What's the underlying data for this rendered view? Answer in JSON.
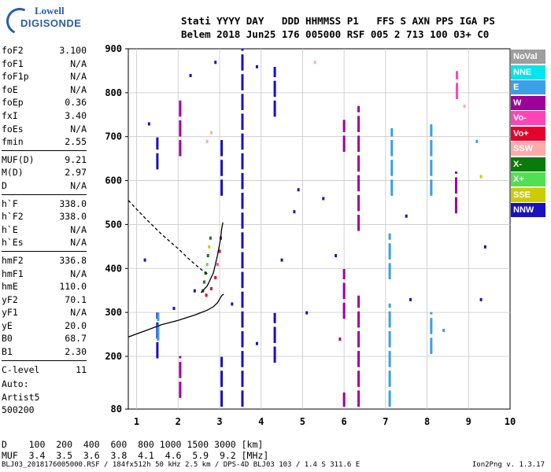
{
  "logo": {
    "line1": "Lowell",
    "line2": "DIGISONDE"
  },
  "header": {
    "line1": "Stati YYYY DAY   DDD HHMMSS P1   FFS S AXN PPS IGA PS",
    "line2": "Belem 2018 Jun25 176 005000 RSF 005 2 713 100 03+ C0"
  },
  "params": {
    "group1": [
      {
        "k": "foF2",
        "v": "3.100"
      },
      {
        "k": "foF1",
        "v": "N/A"
      },
      {
        "k": "foF1p",
        "v": "N/A"
      },
      {
        "k": "foE",
        "v": "N/A"
      },
      {
        "k": "foEp",
        "v": "0.36"
      },
      {
        "k": "fxI",
        "v": "3.40"
      },
      {
        "k": "foEs",
        "v": "N/A"
      },
      {
        "k": "fmin",
        "v": "2.55"
      }
    ],
    "group2": [
      {
        "k": "MUF(D)",
        "v": "9.21"
      },
      {
        "k": "M(D)",
        "v": "2.97"
      },
      {
        "k": "D",
        "v": "N/A"
      }
    ],
    "group3": [
      {
        "k": "h`F",
        "v": "338.0"
      },
      {
        "k": "h`F2",
        "v": "338.0"
      },
      {
        "k": "h`E",
        "v": "N/A"
      },
      {
        "k": "h`Es",
        "v": "N/A"
      }
    ],
    "group4": [
      {
        "k": "hmF2",
        "v": "336.8"
      },
      {
        "k": "hmF1",
        "v": "N/A"
      },
      {
        "k": "hmE",
        "v": "110.0"
      },
      {
        "k": "yF2",
        "v": "70.1"
      },
      {
        "k": "yF1",
        "v": "N/A"
      },
      {
        "k": "yE",
        "v": "20.0"
      },
      {
        "k": "B0",
        "v": "68.7"
      },
      {
        "k": "B1",
        "v": "2.30"
      }
    ],
    "group5": [
      {
        "k": "C-level",
        "v": "11"
      }
    ]
  },
  "auto": {
    "line1": "Auto:",
    "line2": "Artist5",
    "line3": "500200"
  },
  "legend": [
    {
      "label": "NoVal",
      "color": "#9e9e9e"
    },
    {
      "label": "NNE",
      "color": "#00e5ee"
    },
    {
      "label": "E",
      "color": "#3aa0e8"
    },
    {
      "label": "W",
      "color": "#a0009a"
    },
    {
      "label": "Vo-",
      "color": "#ff45b5"
    },
    {
      "label": "Vo+",
      "color": "#e8002a"
    },
    {
      "label": "SSW",
      "color": "#ffaaaa"
    },
    {
      "label": "X-",
      "color": "#0a7a0a"
    },
    {
      "label": "X+",
      "color": "#52e052"
    },
    {
      "label": "SSE",
      "color": "#cccc00"
    },
    {
      "label": "NNW",
      "color": "#1a10c0"
    }
  ],
  "table": {
    "line1": "D    100  200  400  600  800 1000 1500 3000 [km]",
    "line2": "MUF  3.4  3.5  3.6  3.8  4.1  4.6  5.9  9.2 [MHz]"
  },
  "footer": "BLJ03_2018176005000.RSF / 184fx512h 50 kHz 2.5 km / DPS-4D BLJ03 103 / 1.4 S 311.6 E",
  "version": "Ion2Png v. 1.3.17",
  "chart_data": {
    "type": "scatter",
    "xlim": [
      0.8,
      10.0
    ],
    "ylim": [
      80,
      900
    ],
    "xticks": [
      1,
      2,
      3,
      4,
      5,
      6,
      7,
      8,
      9,
      10
    ],
    "yticks": [
      80,
      200,
      300,
      400,
      500,
      600,
      700,
      800,
      900
    ],
    "grid": true,
    "legend_position": "right",
    "traces": [
      {
        "style": "solid",
        "color": "#000000",
        "points": [
          [
            0.8,
            244
          ],
          [
            1.2,
            258
          ],
          [
            1.6,
            272
          ],
          [
            2.0,
            282
          ],
          [
            2.4,
            294
          ],
          [
            2.7,
            305
          ],
          [
            2.85,
            313
          ],
          [
            2.95,
            322
          ],
          [
            3.05,
            338
          ],
          [
            3.1,
            342
          ]
        ]
      },
      {
        "style": "solid",
        "color": "#000000",
        "points": [
          [
            2.55,
            345
          ],
          [
            2.7,
            360
          ],
          [
            2.85,
            390
          ],
          [
            2.95,
            430
          ],
          [
            3.02,
            465
          ],
          [
            3.05,
            490
          ],
          [
            3.08,
            505
          ]
        ]
      },
      {
        "style": "dashed",
        "color": "#000000",
        "points": [
          [
            0.8,
            555
          ],
          [
            1.2,
            515
          ],
          [
            1.6,
            478
          ],
          [
            2.0,
            445
          ],
          [
            2.3,
            418
          ],
          [
            2.55,
            398
          ],
          [
            2.75,
            385
          ]
        ]
      }
    ],
    "columns": [
      {
        "x": 1.5,
        "y": [
          190,
          300
        ],
        "color": "#1a10c0"
      },
      {
        "x": 1.52,
        "y": [
          230,
          300
        ],
        "color": "#3aa0e8"
      },
      {
        "x": 1.5,
        "y": [
          620,
          700
        ],
        "color": "#1a10c0"
      },
      {
        "x": 2.05,
        "y": [
          650,
          790
        ],
        "color": "#a0009a"
      },
      {
        "x": 2.05,
        "y": [
          100,
          200
        ],
        "color": "#a0009a"
      },
      {
        "x": 3.05,
        "y": [
          80,
          200
        ],
        "color": "#1a10c0"
      },
      {
        "x": 3.05,
        "y": [
          560,
          700
        ],
        "color": "#1a10c0"
      },
      {
        "x": 3.55,
        "y": [
          80,
          900
        ],
        "color": "#1a10c0"
      },
      {
        "x": 4.33,
        "y": [
          740,
          860
        ],
        "color": "#1a10c0"
      },
      {
        "x": 4.33,
        "y": [
          180,
          300
        ],
        "color": "#1a10c0"
      },
      {
        "x": 6.0,
        "y": [
          80,
          120
        ],
        "color": "#a0009a"
      },
      {
        "x": 6.0,
        "y": [
          280,
          400
        ],
        "color": "#a0009a"
      },
      {
        "x": 6.0,
        "y": [
          660,
          740
        ],
        "color": "#a0009a"
      },
      {
        "x": 6.35,
        "y": [
          80,
          340
        ],
        "color": "#a0009a"
      },
      {
        "x": 6.35,
        "y": [
          480,
          770
        ],
        "color": "#a0009a"
      },
      {
        "x": 7.1,
        "y": [
          80,
          320
        ],
        "color": "#3aa0e8"
      },
      {
        "x": 7.15,
        "y": [
          560,
          720
        ],
        "color": "#3aa0e8"
      },
      {
        "x": 7.1,
        "y": [
          370,
          480
        ],
        "color": "#3aa0e8"
      },
      {
        "x": 8.1,
        "y": [
          200,
          300
        ],
        "color": "#3aa0e8"
      },
      {
        "x": 8.1,
        "y": [
          560,
          730
        ],
        "color": "#3aa0e8"
      },
      {
        "x": 8.7,
        "y": [
          520,
          620
        ],
        "color": "#a0009a"
      },
      {
        "x": 8.72,
        "y": [
          780,
          850
        ],
        "color": "#ff45b5"
      }
    ],
    "points": [
      {
        "x": 2.6,
        "y": 350,
        "color": "#0a7a0a"
      },
      {
        "x": 2.63,
        "y": 370,
        "color": "#0a7a0a"
      },
      {
        "x": 2.66,
        "y": 390,
        "color": "#0a7a0a"
      },
      {
        "x": 2.7,
        "y": 410,
        "color": "#52e052"
      },
      {
        "x": 2.72,
        "y": 430,
        "color": "#0a7a0a"
      },
      {
        "x": 2.75,
        "y": 450,
        "color": "#cccc00"
      },
      {
        "x": 2.78,
        "y": 470,
        "color": "#0a7a0a"
      },
      {
        "x": 2.68,
        "y": 340,
        "color": "#e8002a"
      },
      {
        "x": 2.8,
        "y": 355,
        "color": "#e8002a"
      },
      {
        "x": 2.9,
        "y": 380,
        "color": "#e8002a"
      },
      {
        "x": 2.95,
        "y": 410,
        "color": "#ff45b5"
      },
      {
        "x": 3.0,
        "y": 440,
        "color": "#e8002a"
      },
      {
        "x": 3.03,
        "y": 470,
        "color": "#a0009a"
      },
      {
        "x": 2.7,
        "y": 690,
        "color": "#ffaaaa"
      },
      {
        "x": 2.8,
        "y": 710,
        "color": "#ffaaaa"
      },
      {
        "x": 5.3,
        "y": 870,
        "color": "#ffaaaa"
      },
      {
        "x": 2.3,
        "y": 840,
        "color": "#1a10c0"
      },
      {
        "x": 2.9,
        "y": 870,
        "color": "#1a10c0"
      },
      {
        "x": 3.9,
        "y": 860,
        "color": "#1a10c0"
      },
      {
        "x": 4.9,
        "y": 580,
        "color": "#1a10c0"
      },
      {
        "x": 5.5,
        "y": 560,
        "color": "#1a10c0"
      },
      {
        "x": 9.3,
        "y": 330,
        "color": "#1a10c0"
      },
      {
        "x": 9.4,
        "y": 450,
        "color": "#1a10c0"
      },
      {
        "x": 8.9,
        "y": 770,
        "color": "#ffaaaa"
      },
      {
        "x": 1.2,
        "y": 420,
        "color": "#1a10c0"
      },
      {
        "x": 4.8,
        "y": 530,
        "color": "#1a10c0"
      },
      {
        "x": 5.8,
        "y": 430,
        "color": "#1a10c0"
      },
      {
        "x": 7.6,
        "y": 330,
        "color": "#1a10c0"
      },
      {
        "x": 9.2,
        "y": 690,
        "color": "#3aa0e8"
      },
      {
        "x": 9.3,
        "y": 610,
        "color": "#cccc00"
      },
      {
        "x": 4.5,
        "y": 420,
        "color": "#1a10c0"
      },
      {
        "x": 5.1,
        "y": 300,
        "color": "#1a10c0"
      },
      {
        "x": 1.9,
        "y": 310,
        "color": "#1a10c0"
      },
      {
        "x": 2.4,
        "y": 350,
        "color": "#1a10c0"
      },
      {
        "x": 3.3,
        "y": 320,
        "color": "#1a10c0"
      },
      {
        "x": 3.9,
        "y": 230,
        "color": "#1a10c0"
      },
      {
        "x": 1.3,
        "y": 730,
        "color": "#1a10c0"
      },
      {
        "x": 5.9,
        "y": 240,
        "color": "#a0009a"
      },
      {
        "x": 7.5,
        "y": 520,
        "color": "#1a10c0"
      },
      {
        "x": 8.4,
        "y": 260,
        "color": "#3aa0e8"
      }
    ]
  }
}
